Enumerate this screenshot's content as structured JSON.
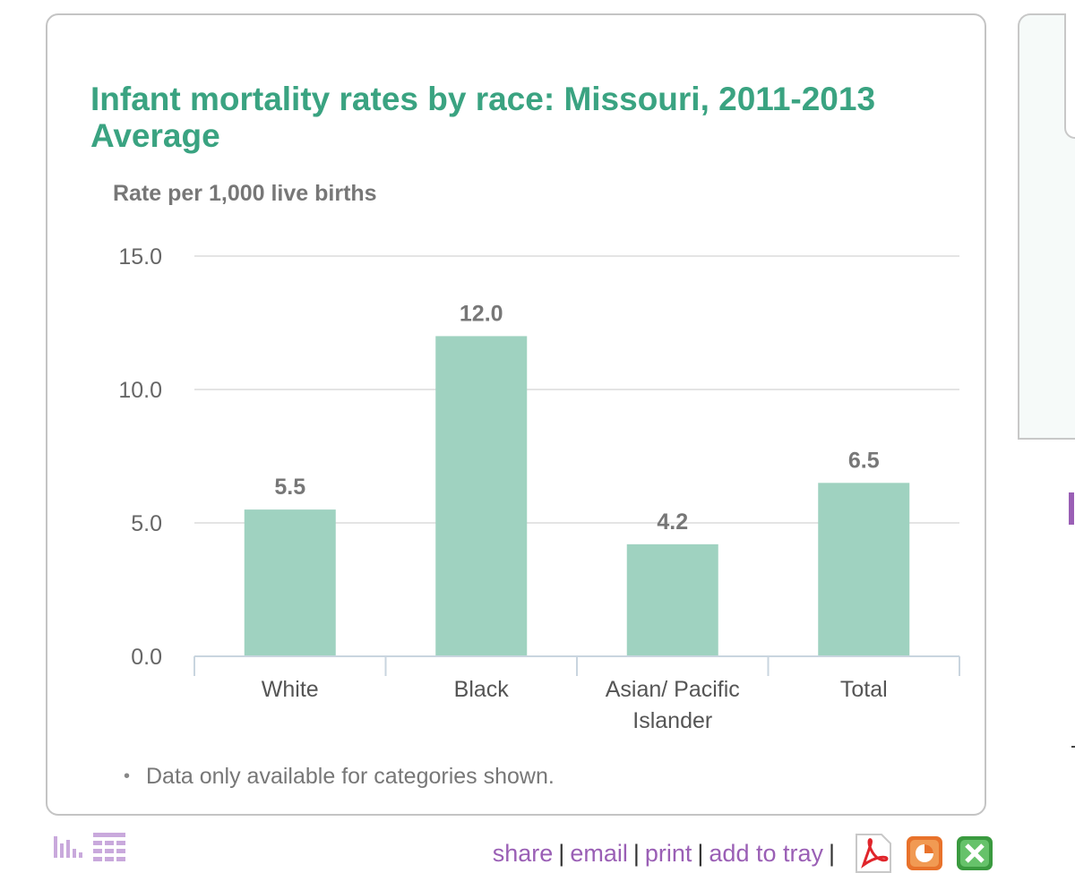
{
  "chart_data": {
    "type": "bar",
    "title": "Infant mortality rates by race: Missouri, 2011-2013 Average",
    "ylabel": "Rate per 1,000 live births",
    "xlabel": "",
    "categories": [
      "White",
      "Black",
      "Asian/ Pacific Islander",
      "Total"
    ],
    "category_lines": [
      [
        "White"
      ],
      [
        "Black"
      ],
      [
        "Asian/ Pacific",
        "Islander"
      ],
      [
        "Total"
      ]
    ],
    "values": [
      5.5,
      12.0,
      4.2,
      6.5
    ],
    "data_labels": [
      "5.5",
      "12.0",
      "4.2",
      "6.5"
    ],
    "ylim": [
      0,
      15
    ],
    "yticks": [
      0,
      5,
      10,
      15
    ],
    "ytick_labels": [
      "0.0",
      "5.0",
      "10.0",
      "15.0"
    ],
    "grid": true,
    "bar_color": "#9fd2c0",
    "note": "Data only available for categories shown."
  },
  "colors": {
    "title": "#3aa381",
    "bar": "#9fd2c0",
    "link": "#9a5fb5",
    "axis_text": "#666666",
    "label_text": "#777777"
  },
  "footer": {
    "share": "share",
    "email": "email",
    "print": "print",
    "add_to_tray": "add to tray",
    "separator": "|"
  },
  "icons": {
    "chart_view": "bar-chart-icon",
    "table_view": "table-icon",
    "pdf": "pdf-icon",
    "powerpoint": "powerpoint-icon",
    "excel": "excel-icon"
  }
}
